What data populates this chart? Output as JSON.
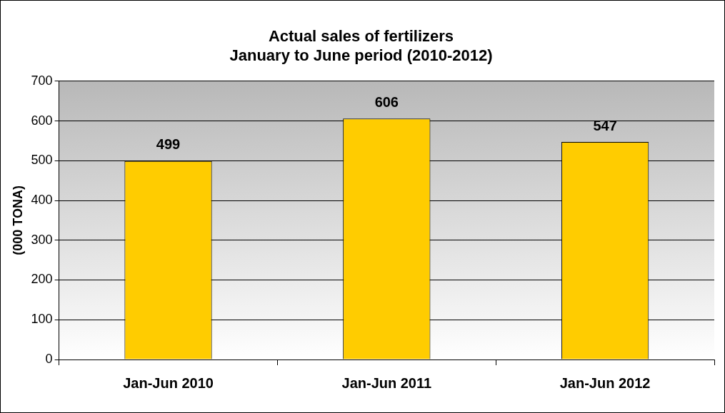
{
  "chart_data": {
    "type": "bar",
    "title": [
      "Actual sales of fertilizers",
      "January to June period (2010-2012)"
    ],
    "ylabel": "(000 TONA)",
    "categories": [
      "Jan-Jun 2010",
      "Jan-Jun 2011",
      "Jan-Jun 2012"
    ],
    "values": [
      499,
      606,
      547
    ],
    "color": "#ffcc00",
    "ylim": [
      0,
      700
    ],
    "yticks": [
      0,
      100,
      200,
      300,
      400,
      500,
      600,
      700
    ],
    "grid": "y",
    "data_labels": true
  }
}
